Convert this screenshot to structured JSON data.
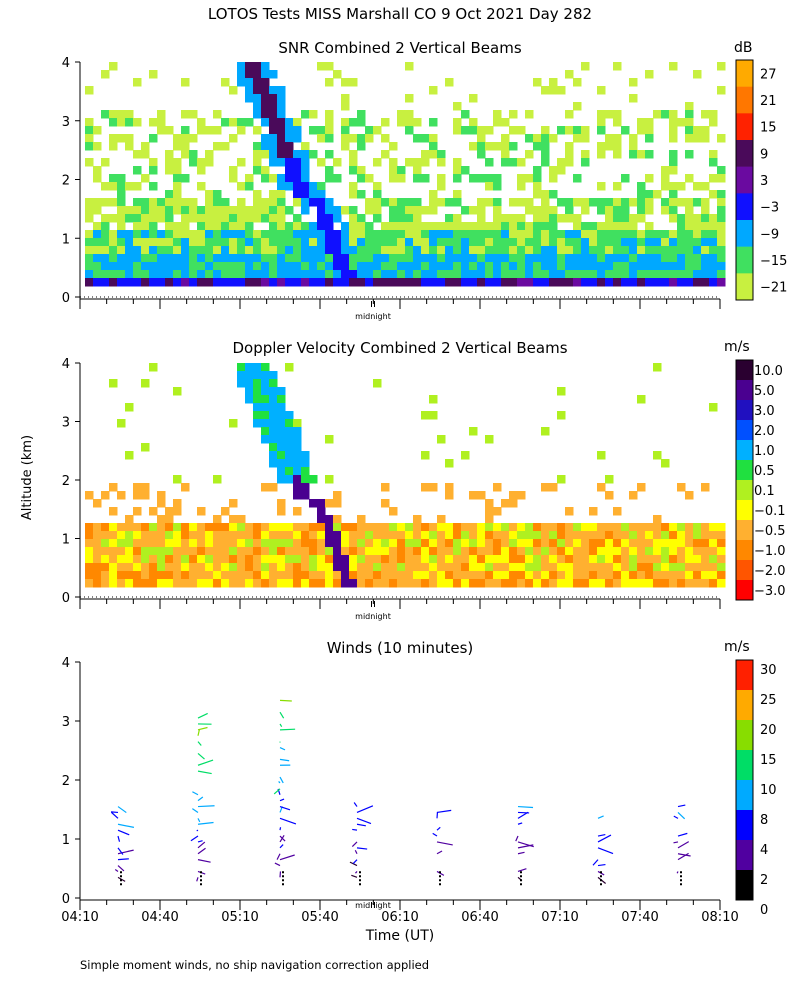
{
  "title": "LOTOS Tests MISS Marshall CO   9 Oct 2021 Day 282",
  "y_axis_label": "Altitude (km)",
  "x_axis_label": "Time (UT)",
  "footnote": "Simple moment winds, no ship navigation correction applied",
  "midnight_label": "midnight",
  "x_tick_labels": [
    "04:10",
    "04:40",
    "05:10",
    "05:40",
    "06:10",
    "06:40",
    "07:10",
    "07:40",
    "08:10"
  ],
  "chart_data": [
    {
      "type": "heatmap",
      "title": "SNR Combined 2 Vertical Beams",
      "unit": "dB",
      "ylabel": "Altitude (km)",
      "ylim": [
        0,
        4
      ],
      "y_ticks": [
        "0",
        "1",
        "2",
        "3",
        "4"
      ],
      "x_range": [
        "04:10",
        "08:10"
      ],
      "colorbar": {
        "labels": [
          "27",
          "21",
          "15",
          "9",
          "3",
          "−3",
          "−9",
          "−15",
          "−21"
        ],
        "colors": [
          "#ffaa00",
          "#ff7700",
          "#ff2200",
          "#4a0a5a",
          "#6a0aa0",
          "#1010ff",
          "#00a8ff",
          "#40e060",
          "#c8f040"
        ]
      }
    },
    {
      "type": "heatmap",
      "title": "Doppler Velocity Combined 2 Vertical Beams",
      "unit": "m/s",
      "ylabel": "Altitude (km)",
      "ylim": [
        0,
        4
      ],
      "y_ticks": [
        "0",
        "1",
        "2",
        "3",
        "4"
      ],
      "x_range": [
        "04:10",
        "08:10"
      ],
      "colorbar": {
        "labels": [
          "10.0",
          "5.0",
          "3.0",
          "2.0",
          "1.0",
          "0.5",
          "0.1",
          "−0.1",
          "−0.5",
          "−1.0",
          "−2.0",
          "−3.0"
        ],
        "colors": [
          "#2a0030",
          "#4a0090",
          "#2010c0",
          "#0050ff",
          "#00b0ff",
          "#20e040",
          "#b0f020",
          "#ffff00",
          "#ffb030",
          "#ff8800",
          "#ff5500",
          "#ff0000"
        ]
      }
    },
    {
      "type": "scatter",
      "title": "Winds (10 minutes)",
      "unit": "m/s",
      "ylabel": "Altitude (km)",
      "xlabel": "Time (UT)",
      "ylim": [
        0,
        4
      ],
      "y_ticks": [
        "0",
        "1",
        "2",
        "3",
        "4"
      ],
      "x_range": [
        "04:10",
        "08:10"
      ],
      "profile_times": [
        "04:35",
        "05:00",
        "05:25",
        "05:55",
        "06:25",
        "06:55",
        "07:25",
        "07:55"
      ],
      "colorbar": {
        "labels": [
          "30",
          "25",
          "20",
          "15",
          "10",
          "8",
          "4",
          "2",
          "0"
        ],
        "colors": [
          "#ff2000",
          "#ffaa00",
          "#88dd00",
          "#00dd66",
          "#00aaff",
          "#0000ff",
          "#5000a0",
          "#000000"
        ]
      }
    }
  ]
}
